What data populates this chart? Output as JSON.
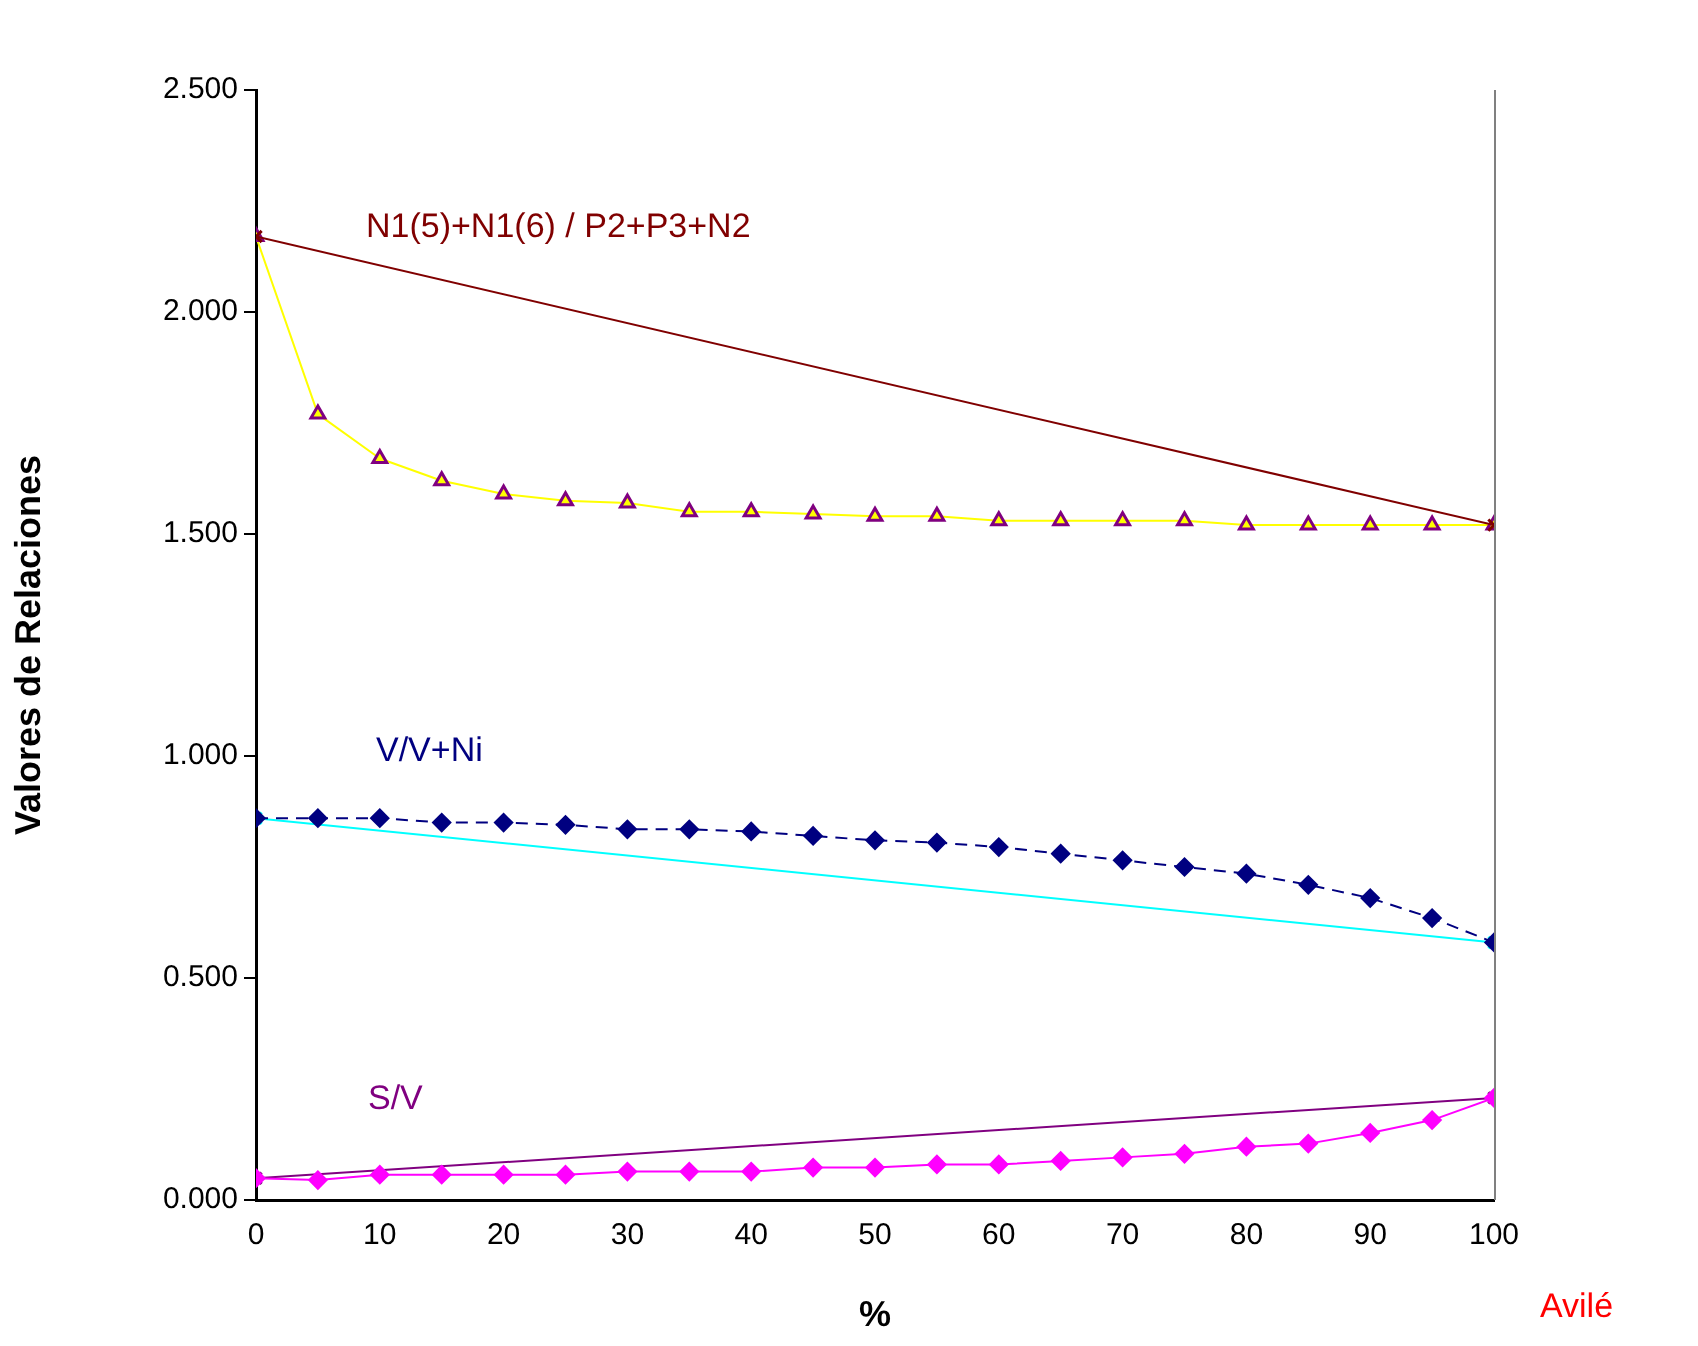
{
  "chart_data": {
    "type": "line",
    "xlabel": "%",
    "ylabel": "Valores de Relaciones",
    "xlim": [
      0,
      100
    ],
    "xticks": [
      0,
      10,
      20,
      30,
      40,
      50,
      60,
      70,
      80,
      90,
      100
    ],
    "ylim": [
      0,
      2.5
    ],
    "yticks": [
      {
        "value": 0,
        "label": "0.000"
      },
      {
        "value": 0.5,
        "label": "0.500"
      },
      {
        "value": 1,
        "label": "1.000"
      },
      {
        "value": 1.5,
        "label": "1.500"
      },
      {
        "value": 2,
        "label": "2.000"
      },
      {
        "value": 2.5,
        "label": "2.500"
      }
    ],
    "grid": false,
    "legend": false,
    "x": [
      0,
      5,
      10,
      15,
      20,
      25,
      30,
      35,
      40,
      45,
      50,
      55,
      60,
      65,
      70,
      75,
      80,
      85,
      90,
      95,
      100
    ],
    "series": [
      {
        "color": "#800000",
        "marker": "cross",
        "values": [
          2.17,
          null,
          null,
          null,
          null,
          null,
          null,
          null,
          null,
          null,
          null,
          null,
          null,
          null,
          null,
          null,
          null,
          null,
          null,
          null,
          1.52
        ]
      },
      {
        "color": "#ffff00",
        "marker": "triangle",
        "values": [
          2.17,
          1.77,
          1.67,
          1.62,
          1.59,
          1.575,
          1.57,
          1.55,
          1.55,
          1.545,
          1.54,
          1.54,
          1.53,
          1.53,
          1.53,
          1.53,
          1.52,
          1.52,
          1.52,
          1.52,
          1.52
        ]
      },
      {
        "color": "#000080",
        "marker": "diamond",
        "line_style": "dashed",
        "values": [
          0.86,
          0.86,
          0.86,
          0.85,
          0.85,
          0.845,
          0.835,
          0.835,
          0.83,
          0.82,
          0.81,
          0.805,
          0.795,
          0.78,
          0.765,
          0.75,
          0.735,
          0.71,
          0.68,
          0.635,
          0.58
        ]
      },
      {
        "color": "#00ffff",
        "marker": "cross",
        "values": [
          0.86,
          null,
          null,
          null,
          null,
          null,
          null,
          null,
          null,
          null,
          null,
          null,
          null,
          null,
          null,
          null,
          null,
          null,
          null,
          null,
          0.58
        ]
      },
      {
        "color": "#ff00ff",
        "marker": "diamond",
        "values": [
          0.049,
          0.045,
          0.057,
          0.057,
          0.057,
          0.057,
          0.064,
          0.064,
          0.064,
          0.073,
          0.073,
          0.08,
          0.08,
          0.088,
          0.096,
          0.104,
          0.12,
          0.127,
          0.151,
          0.18,
          0.23
        ]
      },
      {
        "color": "#800080",
        "marker": "cross",
        "values": [
          0.049,
          null,
          null,
          null,
          null,
          null,
          null,
          null,
          null,
          null,
          null,
          null,
          null,
          null,
          null,
          null,
          null,
          null,
          null,
          null,
          0.23
        ]
      }
    ],
    "annotations": [
      "N1(5)+N1(6) / P2+P3+N2",
      "V/V+Ni",
      "S/V",
      "Avilé"
    ]
  }
}
